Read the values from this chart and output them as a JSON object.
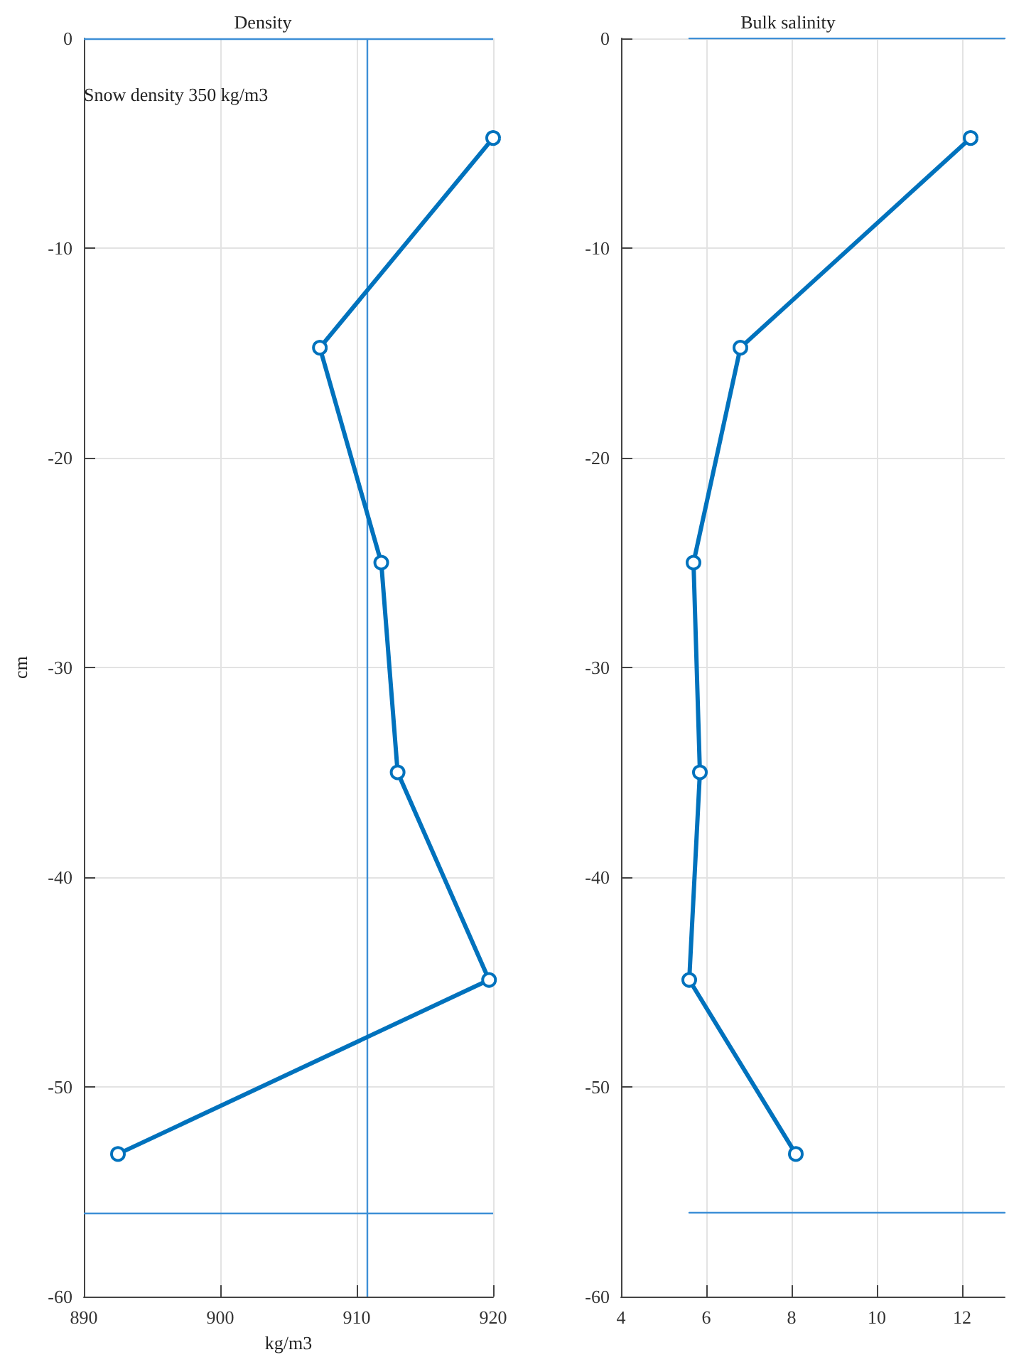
{
  "chart_data": [
    {
      "type": "line",
      "title": "Density",
      "xlabel": "kg/m3",
      "ylabel": "cm",
      "annotations": [
        "Snow density 350 kg/m3"
      ],
      "xlim": [
        890,
        920
      ],
      "xticks": [
        890,
        900,
        910,
        920
      ],
      "ylim": [
        -60,
        0
      ],
      "yticks": [
        -60,
        -50,
        -40,
        -30,
        -20,
        -10,
        0
      ],
      "grid": true,
      "marker": "circle",
      "series": [
        {
          "color": "#0072bd",
          "x": [
            920,
            907.3,
            911.8,
            913,
            919.7,
            892.5
          ],
          "values": [
            -4.75,
            -14.75,
            -25,
            -35,
            -44.9,
            -53.2
          ]
        }
      ],
      "ref_lines": [
        {
          "axis": "x",
          "value": 910.8,
          "color": "#3d8fd6"
        },
        {
          "axis": "y",
          "value": 0,
          "color": "#3d8fd6"
        },
        {
          "axis": "y",
          "value": -56,
          "color": "#3d8fd6"
        }
      ]
    },
    {
      "type": "line",
      "title": "Bulk salinity",
      "xlim": [
        4,
        13
      ],
      "xticks": [
        4,
        6,
        8,
        10,
        12
      ],
      "ylim": [
        -60,
        0
      ],
      "yticks": [
        -60,
        -50,
        -40,
        -30,
        -20,
        -10,
        0
      ],
      "grid": true,
      "marker": "circle",
      "series": [
        {
          "color": "#0072bd",
          "x": [
            12.2,
            6.8,
            5.7,
            5.85,
            5.6,
            8.1
          ],
          "values": [
            -4.75,
            -14.75,
            -25,
            -35,
            -44.9,
            -53.2
          ]
        },
        {
          "color": "#3d8fd6",
          "marker": "none",
          "x": [
            5.6,
            13
          ],
          "values": [
            0,
            0
          ]
        },
        {
          "color": "#3d8fd6",
          "marker": "none",
          "x": [
            5.6,
            13
          ],
          "values": [
            -56,
            -56
          ]
        }
      ]
    }
  ]
}
